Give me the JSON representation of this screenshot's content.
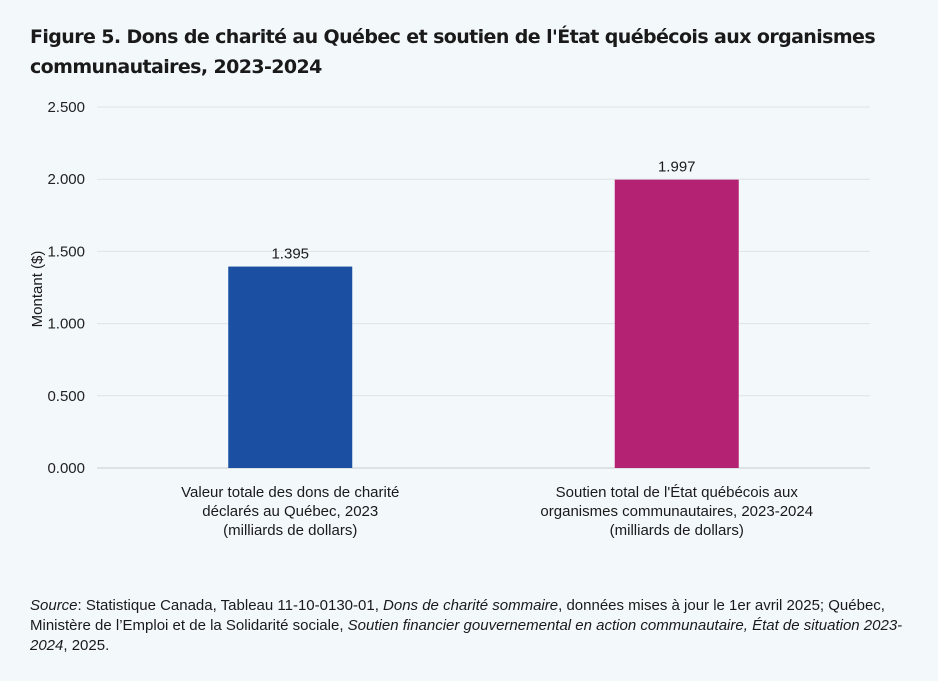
{
  "title": "Figure 5. Dons de charité au Québec et soutien de l'État québécois aux organismes communautaires, 2023-2024",
  "chart_data": {
    "type": "bar",
    "categories": [
      [
        "Valeur totale des dons de charité",
        "déclarés au Québec, 2023",
        "(milliards de dollars)"
      ],
      [
        "Soutien total de l'État québécois aux",
        "organismes communautaires, 2023-2024",
        "(milliards de dollars)"
      ]
    ],
    "values": [
      1.395,
      1.997
    ],
    "data_labels": [
      "1.395",
      "1.997"
    ],
    "colors": [
      "#1b4fa1",
      "#b42373"
    ],
    "ylabel": "Montant ($)",
    "ylim": [
      0,
      2.5
    ],
    "yticks": [
      "0.000",
      "0.500",
      "1.000",
      "1.500",
      "2.000",
      "2.500"
    ],
    "grid": true,
    "legend": "none"
  },
  "source": {
    "lead": "Source",
    "p1": ": Statistique Canada, Tableau 11-10-0130-01, ",
    "p2": "Dons de charité sommaire",
    "p3": ", données mises à jour le 1er avril 2025; Québec, Ministère de l’Emploi et de la Solidarité sociale, ",
    "p4": "Soutien financier gouvernemental en action communautaire, État de situation 2023-2024",
    "p5": ", 2025."
  }
}
